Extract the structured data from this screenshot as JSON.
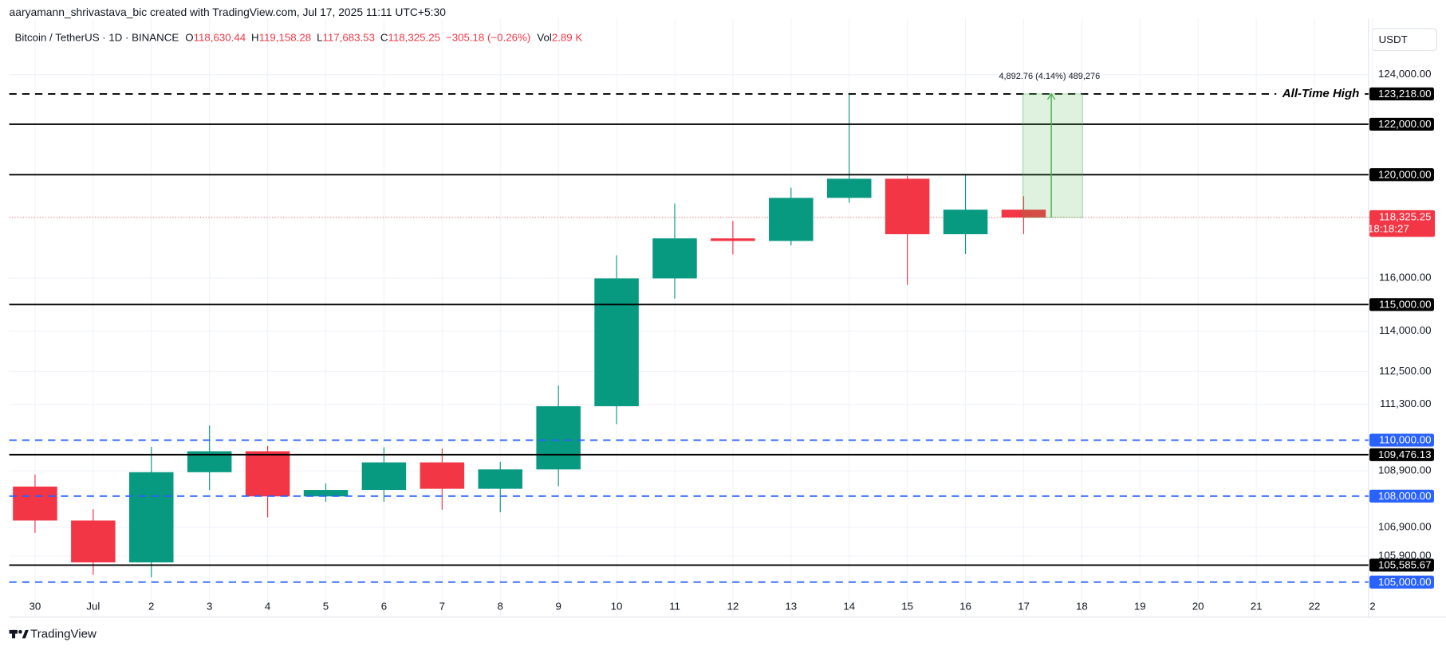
{
  "header": {
    "attribution": "aaryamann_shrivastava_bic created with TradingView.com, Jul 17, 2025 11:11 UTC+5:30",
    "fields": [
      {
        "key": "O",
        "value": "118,630.44"
      },
      {
        "key": "H",
        "value": "119,158.28"
      },
      {
        "key": "L",
        "value": "117,683.53"
      },
      {
        "key": "C",
        "value": "118,325.25"
      }
    ],
    "change": "−305.18 (−0.26%)",
    "volume_key": "Vol",
    "volume": "2.89 K",
    "currency": "USDT",
    "brand": "TradingView"
  },
  "chart_data": {
    "type": "candlestick",
    "title": "Bitcoin / TetherUS · 1D · BINANCE",
    "scale": "log",
    "grid": true,
    "up_color": "#089981",
    "down_color": "#f23645",
    "ylim": [
      104430,
      126000
    ],
    "yticks": [
      {
        "value": 124000,
        "label": "124,000.00"
      },
      {
        "value": 116000,
        "label": "116,000.00"
      },
      {
        "value": 114000,
        "label": "114,000.00"
      },
      {
        "value": 112500,
        "label": "112,500.00"
      },
      {
        "value": 111300,
        "label": "111,300.00"
      },
      {
        "value": 108900,
        "label": "108,900.00"
      },
      {
        "value": 106900,
        "label": "106,900.00"
      },
      {
        "value": 105900,
        "label": "105,900.00"
      }
    ],
    "categories": [
      "30",
      "Jul",
      "2",
      "3",
      "4",
      "5",
      "6",
      "7",
      "8",
      "9",
      "10",
      "11",
      "12",
      "13",
      "14",
      "15",
      "16",
      "17",
      "18",
      "19",
      "20",
      "21",
      "22",
      "2"
    ],
    "open": [
      108340,
      107140,
      105680,
      108850,
      109600,
      107990,
      108220,
      109200,
      108260,
      108950,
      111230,
      115990,
      117520,
      117420,
      119090,
      119840,
      117680,
      118630.44,
      null,
      null,
      null,
      null,
      null,
      null
    ],
    "high": [
      108770,
      107540,
      109760,
      110530,
      109790,
      108450,
      109740,
      109700,
      109220,
      111990,
      116870,
      118870,
      118200,
      119490,
      123218,
      119940,
      120000,
      119158.28,
      null,
      null,
      null,
      null,
      null,
      null
    ],
    "low": [
      106710,
      105250,
      105160,
      108210,
      107250,
      107800,
      107800,
      107520,
      107430,
      108350,
      110580,
      115220,
      116900,
      117250,
      118900,
      115740,
      116920,
      117683.53,
      null,
      null,
      null,
      null,
      null,
      null
    ],
    "close": [
      107140,
      105680,
      108850,
      109600,
      107990,
      108220,
      109200,
      108260,
      108950,
      111230,
      115990,
      117520,
      117420,
      119090,
      119840,
      117680,
      118630,
      118325.25,
      null,
      null,
      null,
      null,
      null,
      null
    ],
    "levels": [
      {
        "value": 123218,
        "label": "123,218.00",
        "color": "#000000",
        "style": "dashed",
        "annotation": "All-Time High"
      },
      {
        "value": 122000,
        "label": "122,000.00",
        "color": "#000000",
        "style": "solid"
      },
      {
        "value": 120000,
        "label": "120,000.00",
        "color": "#000000",
        "style": "solid"
      },
      {
        "value": 115000,
        "label": "115,000.00",
        "color": "#000000",
        "style": "solid"
      },
      {
        "value": 110000,
        "label": "110,000.00",
        "color": "#2962ff",
        "style": "dashed"
      },
      {
        "value": 109476.13,
        "label": "109,476.13",
        "color": "#000000",
        "style": "solid"
      },
      {
        "value": 108000,
        "label": "108,000.00",
        "color": "#2962ff",
        "style": "dashed"
      },
      {
        "value": 105585.67,
        "label": "105,585.67",
        "color": "#000000",
        "style": "solid"
      },
      {
        "value": 105000,
        "label": "105,000.00",
        "color": "#2962ff",
        "style": "dashed"
      }
    ],
    "last_price": {
      "value": 118325.25,
      "label": "118,325.25",
      "countdown": "18:18:27",
      "color": "#f23645"
    },
    "measure": {
      "from": 118325.25,
      "to": 123218,
      "label": "4,892.76 (4.14%) 489,276",
      "color": "#4caf50"
    }
  }
}
